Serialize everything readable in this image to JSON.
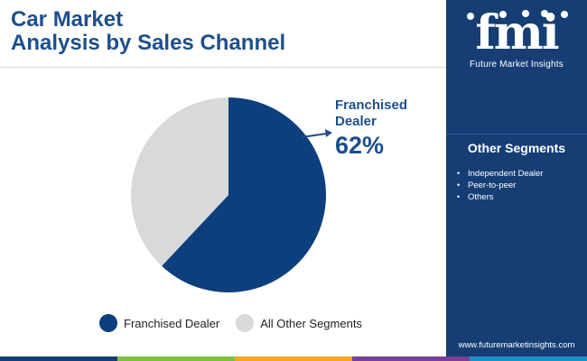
{
  "title": {
    "line1": "Car Market",
    "line2": "Analysis by Sales Channel"
  },
  "chart_data": {
    "type": "pie",
    "categories": [
      "Franchised Dealer",
      "All Other Segments"
    ],
    "values": [
      62,
      38
    ],
    "colors": [
      "#0d3f7e",
      "#d9d9d9"
    ],
    "legend_position": "bottom",
    "callout": {
      "label": "Franchised Dealer",
      "value": "62%"
    }
  },
  "legend": [
    {
      "label": "Franchised Dealer",
      "color": "#0d3f7e"
    },
    {
      "label": "All Other Segments",
      "color": "#d9d9d9"
    }
  ],
  "sidebar": {
    "logo_letters": "fmi",
    "logo_text": "Future Market Insights",
    "segments_title": "Other Segments",
    "segments": [
      "Independent Dealer",
      "Peer-to-peer",
      "Others"
    ],
    "url": "www.futuremarketinsights.com"
  },
  "bottom_bar_colors": [
    "#163e75",
    "#7cc242",
    "#f5a623",
    "#7b3f98",
    "#1e90c8"
  ]
}
